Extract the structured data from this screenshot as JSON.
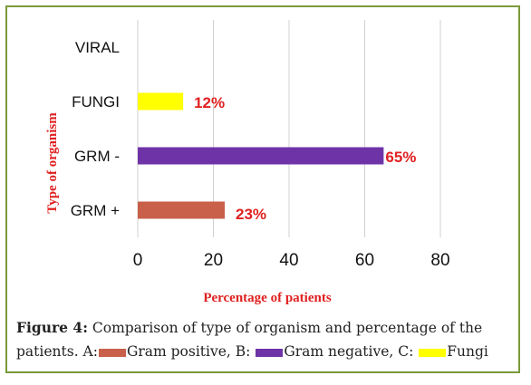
{
  "colors": {
    "gram_positive": "#c8604a",
    "gram_negative": "#6f33a8",
    "fungi": "#ffff00",
    "data_label": "#e02020",
    "axis_title": "#e02020",
    "grid": "#d0d0d0",
    "frame": "#7a9a3a"
  },
  "chart_data": {
    "type": "bar",
    "orientation": "horizontal",
    "categories": [
      "GRM +",
      "GRM -",
      "FUNGI",
      "VIRAL"
    ],
    "values": [
      23,
      65,
      12,
      null
    ],
    "data_labels": [
      "23%",
      "65%",
      "12%",
      ""
    ],
    "bar_colors": [
      "#c8604a",
      "#6f33a8",
      "#ffff00",
      null
    ],
    "xlabel": "Percentage of patients",
    "ylabel": "Type of organism",
    "xlim": [
      0,
      80
    ],
    "xticks": [
      0,
      20,
      40,
      60,
      80
    ],
    "grid": "vertical"
  },
  "caption": {
    "fig_label": "Figure 4:",
    "line1": "Comparison of type of organism and percentage of the",
    "line2_a": "patients. A:",
    "line2_b": "Gram positive, B:",
    "line2_c": "Gram negative, C:",
    "line2_d": "Fungi"
  }
}
